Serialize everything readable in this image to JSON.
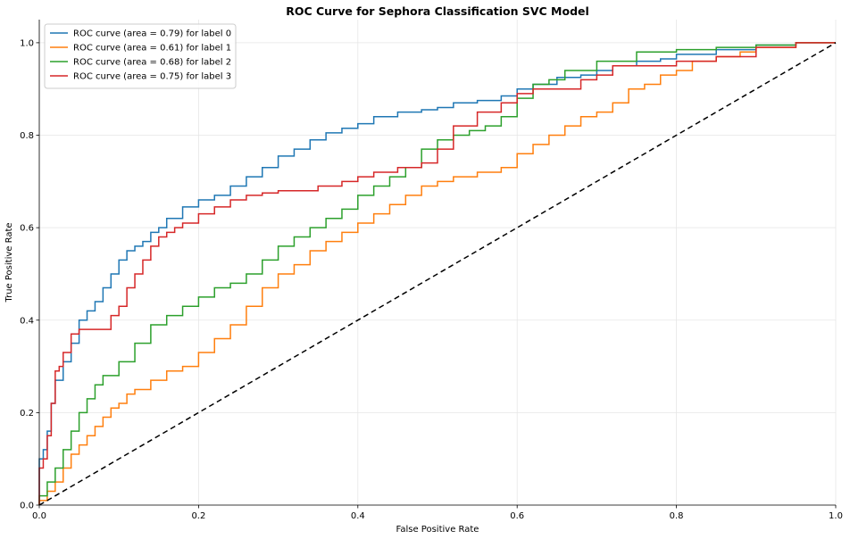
{
  "chart_data": {
    "type": "line",
    "title": "ROC Curve for Sephora Classification SVC Model",
    "xlabel": "False Positive Rate",
    "ylabel": "True Positive Rate",
    "xlim": [
      0.0,
      1.0
    ],
    "ylim": [
      0.0,
      1.05
    ],
    "xticks": [
      "0.0",
      "0.2",
      "0.4",
      "0.6",
      "0.8",
      "1.0"
    ],
    "yticks": [
      "0.0",
      "0.2",
      "0.4",
      "0.6",
      "0.8",
      "1.0"
    ],
    "grid": true,
    "legend_position": "top-left",
    "series": [
      {
        "name": "ROC curve (area = 0.79) for label 0",
        "color": "#1f77b4",
        "x": [
          0.0,
          0.0,
          0.005,
          0.01,
          0.015,
          0.02,
          0.03,
          0.04,
          0.05,
          0.06,
          0.07,
          0.08,
          0.09,
          0.1,
          0.11,
          0.12,
          0.13,
          0.14,
          0.15,
          0.16,
          0.18,
          0.2,
          0.22,
          0.24,
          0.26,
          0.28,
          0.3,
          0.32,
          0.34,
          0.36,
          0.38,
          0.4,
          0.42,
          0.45,
          0.48,
          0.5,
          0.52,
          0.55,
          0.58,
          0.6,
          0.62,
          0.65,
          0.68,
          0.7,
          0.72,
          0.75,
          0.78,
          0.8,
          0.85,
          0.9,
          0.95,
          1.0
        ],
        "y": [
          0.0,
          0.08,
          0.1,
          0.12,
          0.16,
          0.22,
          0.27,
          0.31,
          0.35,
          0.4,
          0.42,
          0.44,
          0.47,
          0.5,
          0.53,
          0.55,
          0.56,
          0.57,
          0.59,
          0.6,
          0.62,
          0.645,
          0.66,
          0.67,
          0.69,
          0.71,
          0.73,
          0.755,
          0.77,
          0.79,
          0.805,
          0.815,
          0.825,
          0.84,
          0.85,
          0.855,
          0.86,
          0.87,
          0.875,
          0.885,
          0.9,
          0.91,
          0.925,
          0.93,
          0.94,
          0.95,
          0.96,
          0.965,
          0.975,
          0.985,
          0.995,
          1.0
        ]
      },
      {
        "name": "ROC curve (area = 0.61) for label 1",
        "color": "#ff7f0e",
        "x": [
          0.0,
          0.01,
          0.02,
          0.03,
          0.04,
          0.05,
          0.06,
          0.07,
          0.08,
          0.09,
          0.1,
          0.11,
          0.12,
          0.14,
          0.16,
          0.18,
          0.2,
          0.22,
          0.24,
          0.26,
          0.28,
          0.3,
          0.32,
          0.34,
          0.36,
          0.38,
          0.4,
          0.42,
          0.44,
          0.46,
          0.48,
          0.5,
          0.52,
          0.55,
          0.58,
          0.6,
          0.62,
          0.64,
          0.66,
          0.68,
          0.7,
          0.72,
          0.74,
          0.76,
          0.78,
          0.8,
          0.82,
          0.85,
          0.88,
          0.9,
          0.95,
          1.0
        ],
        "y": [
          0.0,
          0.01,
          0.03,
          0.05,
          0.08,
          0.11,
          0.13,
          0.15,
          0.17,
          0.19,
          0.21,
          0.22,
          0.24,
          0.25,
          0.27,
          0.29,
          0.3,
          0.33,
          0.36,
          0.39,
          0.43,
          0.47,
          0.5,
          0.52,
          0.55,
          0.57,
          0.59,
          0.61,
          0.63,
          0.65,
          0.67,
          0.69,
          0.7,
          0.71,
          0.72,
          0.73,
          0.76,
          0.78,
          0.8,
          0.82,
          0.84,
          0.85,
          0.87,
          0.9,
          0.91,
          0.93,
          0.94,
          0.96,
          0.97,
          0.98,
          0.99,
          1.0
        ]
      },
      {
        "name": "ROC curve (area = 0.68) for label 2",
        "color": "#2ca02c",
        "x": [
          0.0,
          0.01,
          0.02,
          0.03,
          0.04,
          0.05,
          0.06,
          0.07,
          0.08,
          0.1,
          0.12,
          0.14,
          0.16,
          0.18,
          0.2,
          0.22,
          0.24,
          0.26,
          0.28,
          0.3,
          0.32,
          0.34,
          0.36,
          0.38,
          0.4,
          0.42,
          0.44,
          0.46,
          0.48,
          0.5,
          0.52,
          0.54,
          0.56,
          0.58,
          0.6,
          0.62,
          0.64,
          0.66,
          0.7,
          0.75,
          0.8,
          0.85,
          0.9,
          0.95,
          1.0
        ],
        "y": [
          0.0,
          0.02,
          0.05,
          0.08,
          0.12,
          0.16,
          0.2,
          0.23,
          0.26,
          0.28,
          0.31,
          0.35,
          0.39,
          0.41,
          0.43,
          0.45,
          0.47,
          0.48,
          0.5,
          0.53,
          0.56,
          0.58,
          0.6,
          0.62,
          0.64,
          0.67,
          0.69,
          0.71,
          0.73,
          0.77,
          0.79,
          0.8,
          0.81,
          0.82,
          0.84,
          0.88,
          0.91,
          0.92,
          0.94,
          0.96,
          0.98,
          0.985,
          0.99,
          0.995,
          1.0
        ]
      },
      {
        "name": "ROC curve (area = 0.75) for label 3",
        "color": "#d62728",
        "x": [
          0.0,
          0.005,
          0.01,
          0.015,
          0.02,
          0.025,
          0.03,
          0.04,
          0.05,
          0.06,
          0.07,
          0.08,
          0.09,
          0.1,
          0.11,
          0.12,
          0.13,
          0.14,
          0.15,
          0.16,
          0.17,
          0.18,
          0.2,
          0.22,
          0.24,
          0.26,
          0.28,
          0.3,
          0.32,
          0.35,
          0.38,
          0.4,
          0.42,
          0.45,
          0.48,
          0.5,
          0.52,
          0.55,
          0.58,
          0.6,
          0.62,
          0.65,
          0.68,
          0.7,
          0.72,
          0.75,
          0.8,
          0.85,
          0.9,
          0.95,
          1.0
        ],
        "y": [
          0.0,
          0.08,
          0.1,
          0.15,
          0.22,
          0.29,
          0.3,
          0.33,
          0.37,
          0.38,
          0.38,
          0.38,
          0.38,
          0.41,
          0.43,
          0.47,
          0.5,
          0.53,
          0.56,
          0.58,
          0.59,
          0.6,
          0.61,
          0.63,
          0.645,
          0.66,
          0.67,
          0.675,
          0.68,
          0.68,
          0.69,
          0.7,
          0.71,
          0.72,
          0.73,
          0.74,
          0.77,
          0.82,
          0.85,
          0.87,
          0.89,
          0.9,
          0.9,
          0.92,
          0.93,
          0.95,
          0.95,
          0.96,
          0.97,
          0.99,
          1.0
        ]
      },
      {
        "name": "",
        "color": "#000000",
        "dashed": true,
        "x": [
          0.0,
          1.0
        ],
        "y": [
          0.0,
          1.0
        ]
      }
    ]
  }
}
